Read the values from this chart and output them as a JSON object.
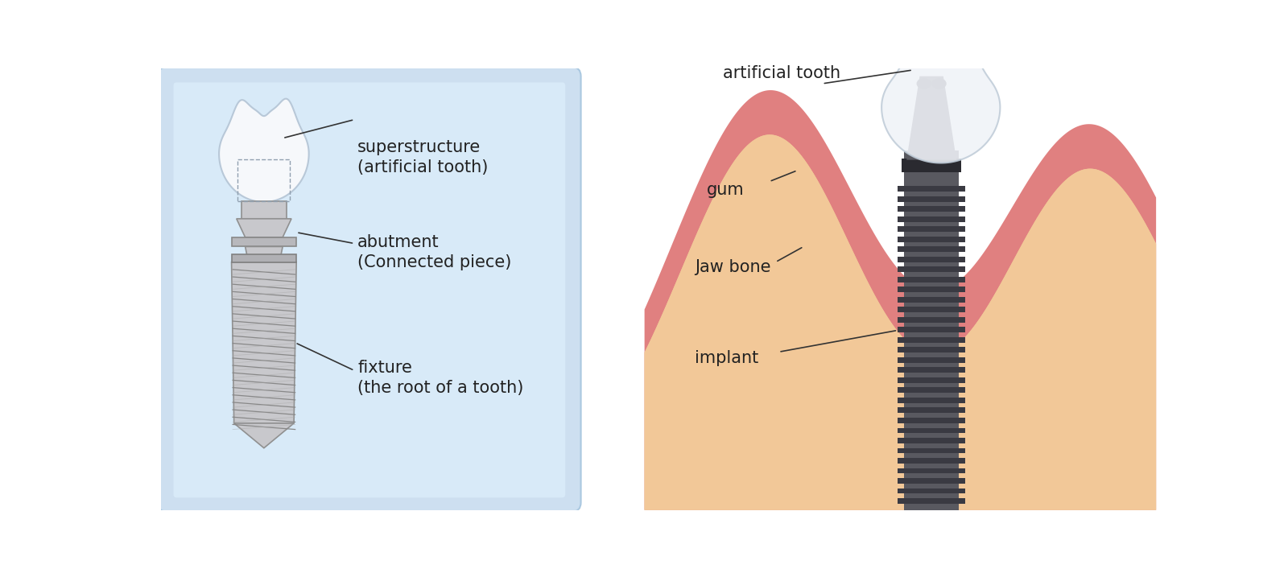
{
  "bg_color": "#ffffff",
  "left_panel_bg_top": "#c8dff0",
  "left_panel_bg_bot": "#e0eef8",
  "left_panel_border": "#aac8e0",
  "tooth_color": "#f8f9fb",
  "tooth_outline": "#c0ccd8",
  "abutment_color": "#c0c0c4",
  "abutment_outline": "#909090",
  "fixture_color": "#c8c8cc",
  "fixture_outline": "#909090",
  "implant_dark": "#555560",
  "implant_thread_dark": "#3a3a42",
  "implant_thread_light": "#606068",
  "gum_pink": "#e08080",
  "gum_light": "#e89898",
  "bone_color": "#f2c8a0",
  "bone_light": "#f8dcc0",
  "crown_white": "#f4f6fa",
  "crown_outline": "#c0ccda",
  "text_color": "#222222",
  "line_color": "#333333",
  "labels": {
    "superstructure": "superstructure\n(artificial tooth)",
    "abutment": "abutment\n(Connected piece)",
    "fixture": "fixture\n(the root of a tooth)",
    "artificial_tooth": "artificial tooth",
    "gum": "gum",
    "jaw_bone": "Jaw bone",
    "implant": "implant"
  }
}
